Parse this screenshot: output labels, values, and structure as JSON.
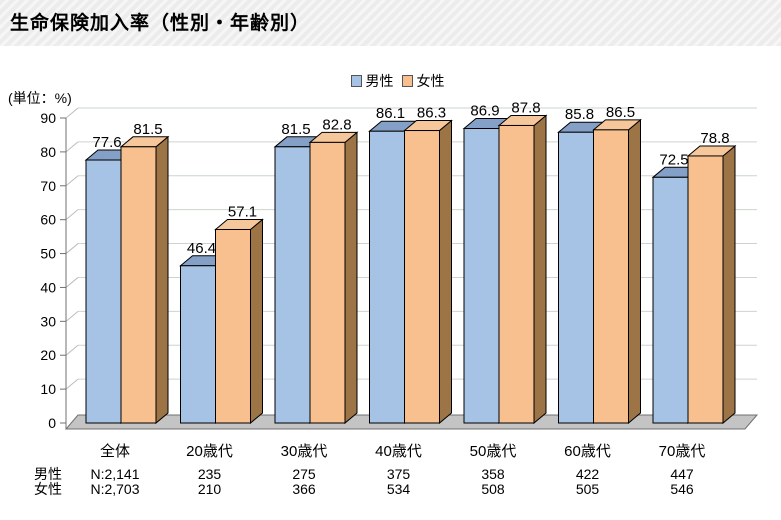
{
  "header": {
    "title": "生命保険加入率（性別・年齢別）"
  },
  "chart_data": {
    "type": "bar",
    "style": "3d-column",
    "title": "生命保険加入率（性別・年齢別）",
    "unit_label": "(単位：%)",
    "categories": [
      "全体",
      "20歳代",
      "30歳代",
      "40歳代",
      "50歳代",
      "60歳代",
      "70歳代"
    ],
    "series": [
      {
        "name": "男性",
        "values": [
          77.6,
          46.4,
          81.5,
          86.1,
          86.9,
          85.8,
          72.5
        ],
        "color": "#a6c3e5",
        "top_color": "#84a0c6",
        "side_color": "#6e89ae"
      },
      {
        "name": "女性",
        "values": [
          81.5,
          57.1,
          82.8,
          86.3,
          87.8,
          86.5,
          78.8
        ],
        "color": "#f9c08f",
        "top_color": "#f5c79b",
        "side_color": "#9d7445"
      }
    ],
    "ylim": [
      0,
      90
    ],
    "ytick_step": 10,
    "yticks": [
      0,
      10,
      20,
      30,
      40,
      50,
      60,
      70,
      80,
      90
    ],
    "grid": true,
    "legend_position": "top-center",
    "value_labels_shown": true,
    "sample_table": {
      "row_labels": [
        "男性",
        "女性"
      ],
      "rows": [
        [
          "N:2,141",
          "235",
          "275",
          "375",
          "358",
          "422",
          "447"
        ],
        [
          "N:2,703",
          "210",
          "366",
          "534",
          "508",
          "505",
          "546"
        ]
      ]
    },
    "colors": {
      "floor": "#c4c4c4",
      "wall": "#ffffff",
      "gridline": "#ccd4cc",
      "wall_tick": "#b8c0b8",
      "axis": "#707070",
      "bar_outline": "#000000"
    }
  }
}
